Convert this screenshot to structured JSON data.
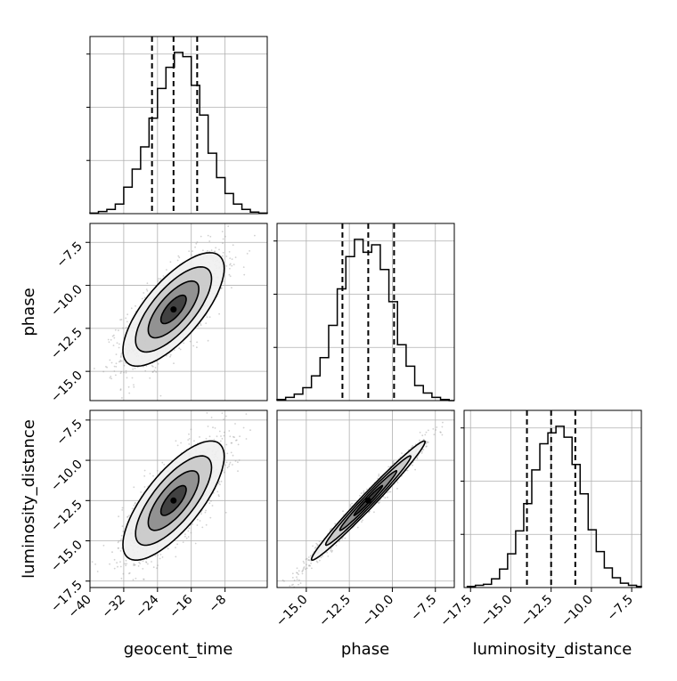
{
  "chart_data": {
    "type": "corner",
    "grid": true,
    "parameters": [
      "geocent_time",
      "phase",
      "luminosity_distance"
    ],
    "axis_labels": {
      "geocent_time": "geocent_time",
      "phase": "phase",
      "luminosity_distance": "luminosity_distance"
    },
    "ranges": {
      "geocent_time": [
        -40,
        2
      ],
      "phase": [
        -16.7,
        -6.4
      ],
      "luminosity_distance": [
        -17.9,
        -6.9
      ]
    },
    "ticks": {
      "geocent_time": [
        -40,
        -32,
        -24,
        -16,
        -8
      ],
      "phase": [
        -15.0,
        -12.5,
        -10.0,
        -7.5
      ],
      "luminosity_distance": [
        -17.5,
        -15.0,
        -12.5,
        -10.0,
        -7.5
      ]
    },
    "tick_labels": {
      "geocent_time": [
        "−40",
        "−32",
        "−24",
        "−16",
        "−8"
      ],
      "phase": [
        "−15.0",
        "−12.5",
        "−10.0",
        "−7.5"
      ],
      "luminosity_distance": [
        "−17.5",
        "−15.0",
        "−12.5",
        "−10.0",
        "−7.5"
      ]
    },
    "quantiles": {
      "geocent_time": [
        -25.3,
        -20.2,
        -14.6
      ],
      "phase": [
        -12.9,
        -11.4,
        -9.9
      ],
      "luminosity_distance": [
        -14.0,
        -12.5,
        -11.0
      ]
    },
    "histograms": {
      "geocent_time": {
        "bin_edges": [
          -40,
          -38,
          -36,
          -34,
          -32,
          -30,
          -28,
          -26,
          -24,
          -22,
          -20,
          -18,
          -16,
          -14,
          -12,
          -10,
          -8,
          -6,
          -4,
          -2,
          0,
          2
        ],
        "counts": [
          0.5,
          2,
          4,
          9,
          25,
          42,
          63,
          90,
          118,
          138,
          152,
          148,
          121,
          93,
          57,
          34,
          19,
          9,
          4,
          1.5,
          0.5
        ]
      },
      "phase": {
        "bin_edges": [
          -16.7,
          -16.2,
          -15.7,
          -15.2,
          -14.7,
          -14.2,
          -13.7,
          -13.2,
          -12.7,
          -12.2,
          -11.7,
          -11.2,
          -10.7,
          -10.2,
          -9.7,
          -9.2,
          -8.7,
          -8.2,
          -7.7,
          -7.2,
          -6.7,
          -6.4
        ],
        "counts": [
          1,
          3,
          6,
          12,
          23,
          40,
          70,
          104,
          134,
          150,
          138,
          145,
          122,
          92,
          52,
          32,
          14,
          7,
          3,
          1,
          0
        ]
      },
      "luminosity_distance": {
        "bin_edges": [
          -17.7,
          -17.2,
          -16.7,
          -16.2,
          -15.7,
          -15.2,
          -14.7,
          -14.2,
          -13.7,
          -13.2,
          -12.7,
          -12.2,
          -11.7,
          -11.2,
          -10.7,
          -10.2,
          -9.7,
          -9.2,
          -8.7,
          -8.2,
          -7.7,
          -7.2,
          -6.9
        ],
        "counts": [
          1,
          2,
          3,
          8,
          17,
          31,
          52,
          77,
          108,
          132,
          142,
          148,
          138,
          113,
          86,
          53,
          33,
          18,
          9,
          4,
          2,
          1
        ]
      }
    },
    "pairs": [
      {
        "x": "geocent_time",
        "y": "phase",
        "mean": [
          -20.2,
          -11.4
        ],
        "sd": [
          6.0,
          1.65
        ],
        "corr": 0.72,
        "contour_levels_sigma": [
          0.5,
          1.0,
          1.5,
          2.0
        ]
      },
      {
        "x": "geocent_time",
        "y": "luminosity_distance",
        "mean": [
          -20.2,
          -12.5
        ],
        "sd": [
          6.0,
          1.85
        ],
        "corr": 0.74,
        "contour_levels_sigma": [
          0.5,
          1.0,
          1.5,
          2.0
        ]
      },
      {
        "x": "phase",
        "y": "luminosity_distance",
        "mean": [
          -11.4,
          -12.5
        ],
        "sd": [
          1.65,
          1.85
        ],
        "corr": 0.985,
        "contour_levels_sigma": [
          0.5,
          1.0,
          1.5,
          2.0
        ]
      }
    ],
    "colors": {
      "line": "#000000",
      "points": "#9a9a9a",
      "grid": "#b0b0b0"
    }
  }
}
